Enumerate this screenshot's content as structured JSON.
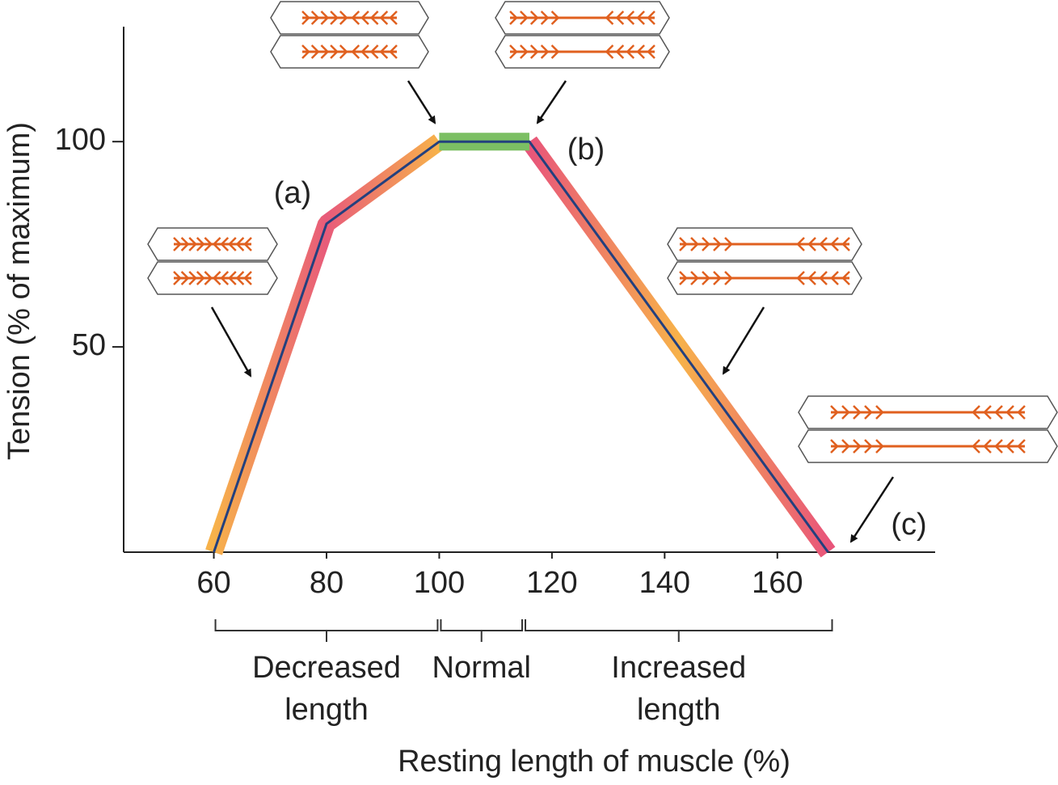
{
  "chart_data": {
    "type": "line",
    "x_label": "Resting length of muscle (%)",
    "y_label": "Tension (% of maximum)",
    "x": [
      60,
      80,
      100,
      116,
      169
    ],
    "values": [
      0,
      80,
      100,
      100,
      0
    ],
    "color": "#23407e",
    "xlim": [
      44,
      188
    ],
    "xticks": [
      60,
      80,
      100,
      120,
      140,
      160
    ],
    "ylim": [
      0,
      128
    ],
    "yticks": [
      50,
      100
    ],
    "annotations": [
      "(a)",
      "(b)",
      "(c)"
    ],
    "regions": [
      {
        "label": "Decreased length",
        "range": [
          60,
          100
        ]
      },
      {
        "label": "Normal",
        "range": [
          100,
          115
        ]
      },
      {
        "label": "Increased length",
        "range": [
          115,
          170
        ]
      }
    ]
  }
}
